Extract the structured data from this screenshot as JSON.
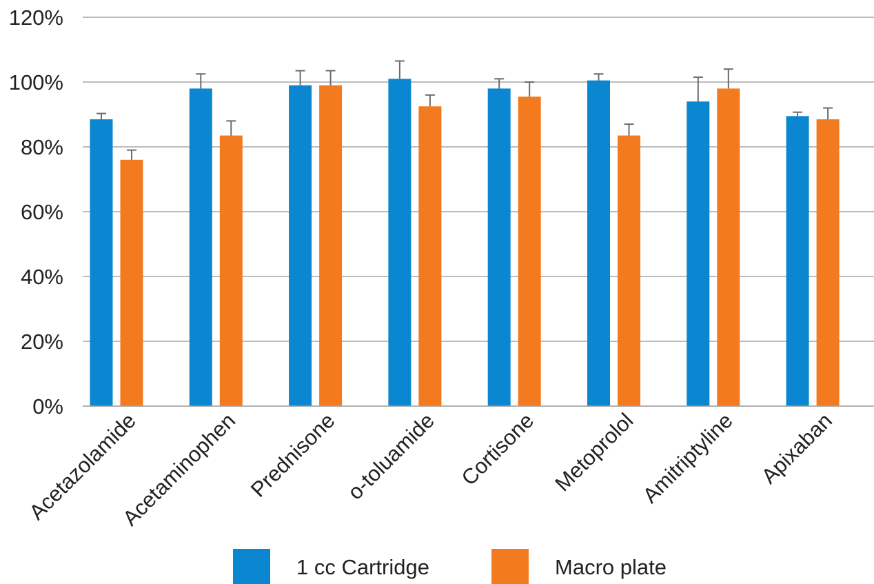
{
  "chart_data": {
    "type": "bar",
    "title": "",
    "xlabel": "",
    "ylabel": "",
    "ylim": [
      0,
      120
    ],
    "yticks": [
      "0%",
      "20%",
      "40%",
      "60%",
      "80%",
      "100%",
      "120%"
    ],
    "grid": true,
    "legend_position": "bottom",
    "categories": [
      "Acetazolamide",
      "Acetaminophen",
      "Prednisone",
      "o-toluamide",
      "Cortisone",
      "Metoprolol",
      "Amitriptyline",
      "Apixaban"
    ],
    "series": [
      {
        "name": "1 cc Cartridge",
        "color": "#0a87d0",
        "values": [
          88.5,
          98,
          99,
          101,
          98,
          100.5,
          94,
          89.5
        ],
        "error": [
          1.8,
          4.5,
          4.5,
          5.5,
          3.0,
          2.0,
          7.5,
          1.2
        ]
      },
      {
        "name": "Macro plate",
        "color": "#f47a20",
        "values": [
          76,
          83.5,
          99,
          92.5,
          95.5,
          83.5,
          98,
          88.5
        ],
        "error": [
          3.0,
          4.5,
          4.5,
          3.5,
          4.5,
          3.5,
          6.0,
          3.5
        ]
      }
    ]
  }
}
